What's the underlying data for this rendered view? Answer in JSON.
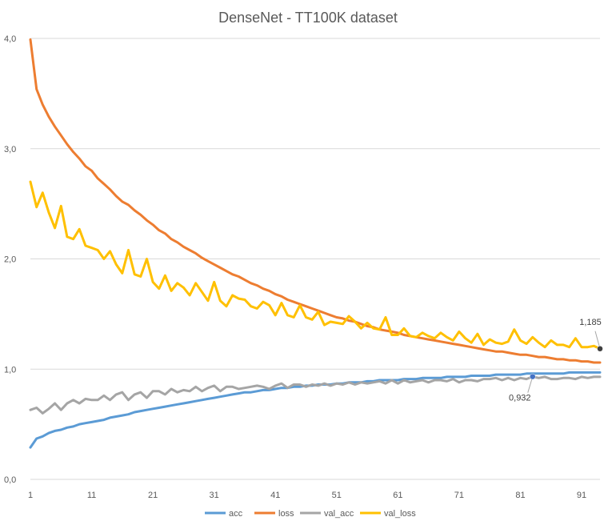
{
  "chart_data": {
    "type": "line",
    "title": "DenseNet - TT100K dataset",
    "xlabel": "",
    "ylabel": "",
    "ylim": [
      0,
      4
    ],
    "xlim": [
      1,
      94
    ],
    "y_ticks": [
      "0,0",
      "1,0",
      "2,0",
      "3,0",
      "4,0"
    ],
    "y_tick_values": [
      0,
      1,
      2,
      3,
      4
    ],
    "x_ticks": [
      "1",
      "11",
      "21",
      "31",
      "41",
      "51",
      "61",
      "71",
      "81",
      "91"
    ],
    "x_tick_values": [
      1,
      11,
      21,
      31,
      41,
      51,
      61,
      71,
      81,
      91
    ],
    "grid": "horizontal",
    "legend_position": "bottom",
    "x": [
      1,
      2,
      3,
      4,
      5,
      6,
      7,
      8,
      9,
      10,
      11,
      12,
      13,
      14,
      15,
      16,
      17,
      18,
      19,
      20,
      21,
      22,
      23,
      24,
      25,
      26,
      27,
      28,
      29,
      30,
      31,
      32,
      33,
      34,
      35,
      36,
      37,
      38,
      39,
      40,
      41,
      42,
      43,
      44,
      45,
      46,
      47,
      48,
      49,
      50,
      51,
      52,
      53,
      54,
      55,
      56,
      57,
      58,
      59,
      60,
      61,
      62,
      63,
      64,
      65,
      66,
      67,
      68,
      69,
      70,
      71,
      72,
      73,
      74,
      75,
      76,
      77,
      78,
      79,
      80,
      81,
      82,
      83,
      84,
      85,
      86,
      87,
      88,
      89,
      90,
      91,
      92,
      93,
      94
    ],
    "series": [
      {
        "name": "acc",
        "color": "#5B9BD5",
        "values": [
          0.29,
          0.37,
          0.39,
          0.42,
          0.44,
          0.45,
          0.47,
          0.48,
          0.5,
          0.51,
          0.52,
          0.53,
          0.54,
          0.56,
          0.57,
          0.58,
          0.59,
          0.61,
          0.62,
          0.63,
          0.64,
          0.65,
          0.66,
          0.67,
          0.68,
          0.69,
          0.7,
          0.71,
          0.72,
          0.73,
          0.74,
          0.75,
          0.76,
          0.77,
          0.78,
          0.79,
          0.79,
          0.8,
          0.81,
          0.81,
          0.82,
          0.83,
          0.83,
          0.84,
          0.84,
          0.85,
          0.85,
          0.86,
          0.86,
          0.86,
          0.87,
          0.87,
          0.88,
          0.88,
          0.88,
          0.89,
          0.89,
          0.9,
          0.9,
          0.9,
          0.9,
          0.91,
          0.91,
          0.91,
          0.92,
          0.92,
          0.92,
          0.92,
          0.93,
          0.93,
          0.93,
          0.93,
          0.94,
          0.94,
          0.94,
          0.94,
          0.95,
          0.95,
          0.95,
          0.95,
          0.95,
          0.96,
          0.96,
          0.96,
          0.96,
          0.96,
          0.96,
          0.96,
          0.97,
          0.97,
          0.97,
          0.97,
          0.97,
          0.97
        ]
      },
      {
        "name": "loss",
        "color": "#ED7D31",
        "values": [
          3.99,
          3.54,
          3.4,
          3.29,
          3.2,
          3.12,
          3.04,
          2.97,
          2.91,
          2.84,
          2.8,
          2.73,
          2.68,
          2.63,
          2.57,
          2.52,
          2.49,
          2.44,
          2.4,
          2.35,
          2.31,
          2.26,
          2.23,
          2.18,
          2.15,
          2.11,
          2.08,
          2.05,
          2.01,
          1.98,
          1.95,
          1.92,
          1.89,
          1.86,
          1.84,
          1.81,
          1.78,
          1.76,
          1.73,
          1.71,
          1.68,
          1.66,
          1.63,
          1.61,
          1.59,
          1.57,
          1.55,
          1.53,
          1.51,
          1.49,
          1.47,
          1.46,
          1.44,
          1.43,
          1.41,
          1.39,
          1.38,
          1.36,
          1.35,
          1.34,
          1.33,
          1.31,
          1.3,
          1.29,
          1.28,
          1.27,
          1.26,
          1.25,
          1.24,
          1.23,
          1.22,
          1.21,
          1.2,
          1.19,
          1.18,
          1.17,
          1.16,
          1.16,
          1.15,
          1.14,
          1.13,
          1.13,
          1.12,
          1.11,
          1.11,
          1.1,
          1.09,
          1.09,
          1.08,
          1.08,
          1.07,
          1.07,
          1.06,
          1.06
        ]
      },
      {
        "name": "val_acc",
        "color": "#A5A5A5",
        "values": [
          0.63,
          0.65,
          0.6,
          0.64,
          0.69,
          0.63,
          0.69,
          0.72,
          0.69,
          0.73,
          0.72,
          0.72,
          0.76,
          0.72,
          0.77,
          0.79,
          0.72,
          0.77,
          0.79,
          0.74,
          0.8,
          0.8,
          0.77,
          0.82,
          0.79,
          0.81,
          0.8,
          0.84,
          0.8,
          0.83,
          0.85,
          0.8,
          0.84,
          0.84,
          0.82,
          0.83,
          0.84,
          0.85,
          0.84,
          0.82,
          0.85,
          0.87,
          0.83,
          0.86,
          0.86,
          0.84,
          0.86,
          0.85,
          0.87,
          0.85,
          0.87,
          0.86,
          0.88,
          0.86,
          0.88,
          0.87,
          0.88,
          0.89,
          0.87,
          0.9,
          0.87,
          0.9,
          0.88,
          0.89,
          0.9,
          0.88,
          0.9,
          0.9,
          0.89,
          0.91,
          0.88,
          0.9,
          0.9,
          0.89,
          0.91,
          0.91,
          0.92,
          0.9,
          0.92,
          0.9,
          0.92,
          0.91,
          0.932,
          0.92,
          0.93,
          0.91,
          0.91,
          0.92,
          0.92,
          0.91,
          0.93,
          0.92,
          0.93,
          0.93
        ]
      },
      {
        "name": "val_loss",
        "color": "#FFC000",
        "values": [
          2.7,
          2.47,
          2.6,
          2.42,
          2.28,
          2.48,
          2.2,
          2.18,
          2.27,
          2.12,
          2.1,
          2.08,
          2.0,
          2.07,
          1.95,
          1.87,
          2.08,
          1.86,
          1.84,
          2.0,
          1.79,
          1.73,
          1.85,
          1.71,
          1.78,
          1.74,
          1.67,
          1.78,
          1.7,
          1.62,
          1.79,
          1.62,
          1.57,
          1.67,
          1.64,
          1.63,
          1.57,
          1.55,
          1.61,
          1.58,
          1.49,
          1.6,
          1.49,
          1.47,
          1.58,
          1.47,
          1.45,
          1.52,
          1.4,
          1.43,
          1.42,
          1.41,
          1.48,
          1.43,
          1.37,
          1.42,
          1.37,
          1.36,
          1.47,
          1.31,
          1.31,
          1.37,
          1.3,
          1.29,
          1.33,
          1.3,
          1.28,
          1.33,
          1.29,
          1.26,
          1.34,
          1.28,
          1.24,
          1.32,
          1.22,
          1.27,
          1.24,
          1.23,
          1.25,
          1.36,
          1.26,
          1.23,
          1.29,
          1.24,
          1.2,
          1.26,
          1.22,
          1.22,
          1.2,
          1.28,
          1.2,
          1.2,
          1.21,
          1.185
        ]
      }
    ],
    "annotations": [
      {
        "label": "1,185",
        "series": "val_loss",
        "x": 94,
        "y": 1.185
      },
      {
        "label": "0,932",
        "series": "val_acc",
        "x": 83,
        "y": 0.932
      }
    ]
  }
}
